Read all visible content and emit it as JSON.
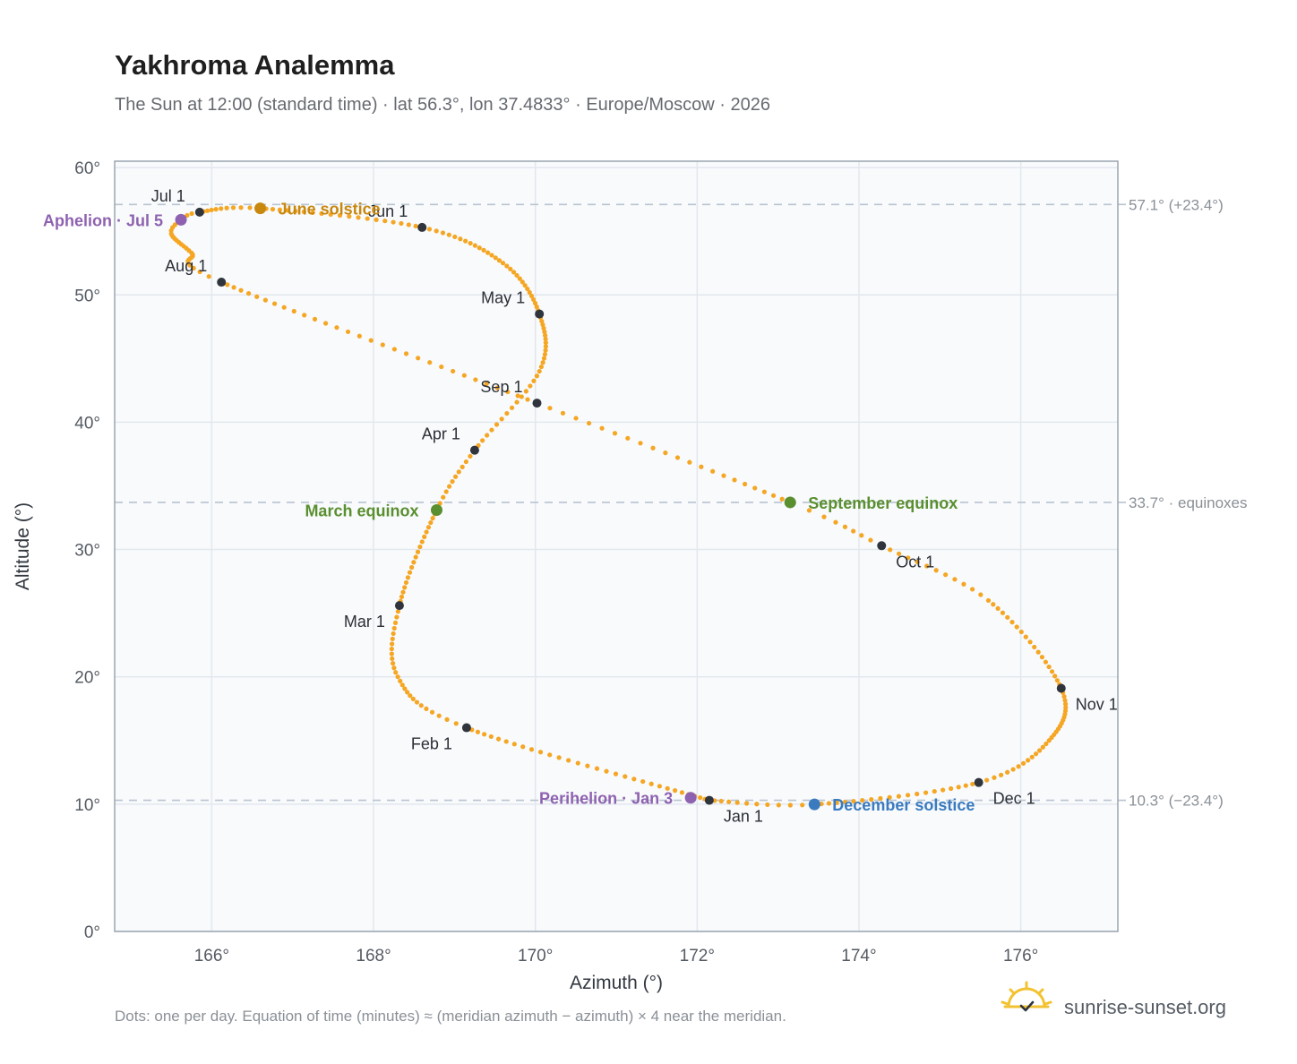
{
  "header": {
    "title": "Yakhroma Analemma",
    "subtitle": "The Sun at 12:00 (standard time) · lat 56.3°, lon 37.4833° · Europe/Moscow · 2026"
  },
  "footer": {
    "note": "Dots: one per day. Equation of time (minutes) ≈ (meridian azimuth − azimuth) × 4 near the meridian.",
    "brand": "sunrise-sunset.org",
    "brand_icon": "sun-check-icon"
  },
  "colors": {
    "curve": "#f5a623",
    "month_dot": "#30353d",
    "solstice_june": "#c8870f",
    "solstice_december": "#3a7bbf",
    "equinox": "#5a8f2f",
    "apsis": "#8e62b0",
    "plot_bg": "#f8fafc",
    "grid": "#e3e8ee",
    "ref_line": "#b8c4d0",
    "frame": "#9aa5b1"
  },
  "chart_data": {
    "type": "scatter",
    "title": "Yakhroma Analemma",
    "xlabel": "Azimuth (°)",
    "ylabel": "Altitude (°)",
    "xlim": [
      164.8,
      177.2
    ],
    "ylim": [
      0,
      60.5
    ],
    "x_ticks": [
      {
        "value": 166,
        "label": "166°"
      },
      {
        "value": 168,
        "label": "168°"
      },
      {
        "value": 170,
        "label": "170°"
      },
      {
        "value": 172,
        "label": "172°"
      },
      {
        "value": 174,
        "label": "174°"
      },
      {
        "value": 176,
        "label": "176°"
      }
    ],
    "y_ticks": [
      {
        "value": 0,
        "label": "0°"
      },
      {
        "value": 10,
        "label": "10°"
      },
      {
        "value": 20,
        "label": "20°"
      },
      {
        "value": 30,
        "label": "30°"
      },
      {
        "value": 40,
        "label": "40°"
      },
      {
        "value": 50,
        "label": "50°"
      },
      {
        "value": 60,
        "label": "60°"
      }
    ],
    "grid": true,
    "reference_lines": [
      {
        "altitude": 57.1,
        "label": "57.1° (+23.4°)"
      },
      {
        "altitude": 33.7,
        "label": "33.7° · equinoxes"
      },
      {
        "altitude": 10.3,
        "label": "10.3° (−23.4°)"
      }
    ],
    "path_knots": [
      {
        "x": 172.15,
        "y": 10.3
      },
      {
        "x": 169.15,
        "y": 16.0
      },
      {
        "x": 168.3,
        "y": 20.0
      },
      {
        "x": 168.32,
        "y": 25.6
      },
      {
        "x": 168.78,
        "y": 33.1
      },
      {
        "x": 169.25,
        "y": 37.8
      },
      {
        "x": 170.05,
        "y": 44.0
      },
      {
        "x": 170.05,
        "y": 48.5
      },
      {
        "x": 169.6,
        "y": 52.5
      },
      {
        "x": 168.6,
        "y": 55.3
      },
      {
        "x": 166.6,
        "y": 56.8
      },
      {
        "x": 165.85,
        "y": 56.5
      },
      {
        "x": 165.62,
        "y": 55.9
      },
      {
        "x": 165.5,
        "y": 54.8
      },
      {
        "x": 165.75,
        "y": 53.3
      },
      {
        "x": 166.12,
        "y": 51.0
      },
      {
        "x": 170.02,
        "y": 41.5
      },
      {
        "x": 173.15,
        "y": 33.7
      },
      {
        "x": 174.28,
        "y": 30.3
      },
      {
        "x": 175.6,
        "y": 26.0
      },
      {
        "x": 176.5,
        "y": 19.1
      },
      {
        "x": 176.35,
        "y": 15.0
      },
      {
        "x": 175.48,
        "y": 11.7
      },
      {
        "x": 173.45,
        "y": 9.98
      },
      {
        "x": 172.15,
        "y": 10.3
      }
    ],
    "path_days": [
      0,
      31,
      45,
      59,
      79,
      90,
      105,
      120,
      135,
      151,
      171,
      181,
      185,
      190,
      200,
      212,
      243,
      265,
      273,
      285,
      304,
      320,
      334,
      354,
      365
    ],
    "months": [
      {
        "label": "Jan 1",
        "x": 172.15,
        "y": 10.3,
        "anchor": "start",
        "dx": 16,
        "dy": 24
      },
      {
        "label": "Feb 1",
        "x": 169.15,
        "y": 16.0,
        "anchor": "end",
        "dx": -16,
        "dy": 24
      },
      {
        "label": "Mar 1",
        "x": 168.32,
        "y": 25.6,
        "anchor": "end",
        "dx": -16,
        "dy": 24
      },
      {
        "label": "Apr 1",
        "x": 169.25,
        "y": 37.8,
        "anchor": "end",
        "dx": -16,
        "dy": -12
      },
      {
        "label": "May 1",
        "x": 170.05,
        "y": 48.5,
        "anchor": "end",
        "dx": -16,
        "dy": -12
      },
      {
        "label": "Jun 1",
        "x": 168.6,
        "y": 55.3,
        "anchor": "end",
        "dx": -16,
        "dy": -12
      },
      {
        "label": "Jul 1",
        "x": 165.85,
        "y": 56.5,
        "anchor": "end",
        "dx": -16,
        "dy": -12
      },
      {
        "label": "Aug 1",
        "x": 166.12,
        "y": 51.0,
        "anchor": "end",
        "dx": -16,
        "dy": -12
      },
      {
        "label": "Sep 1",
        "x": 170.02,
        "y": 41.5,
        "anchor": "end",
        "dx": -16,
        "dy": -12
      },
      {
        "label": "Oct 1",
        "x": 174.28,
        "y": 30.3,
        "anchor": "start",
        "dx": 16,
        "dy": 24
      },
      {
        "label": "Nov 1",
        "x": 176.5,
        "y": 19.1,
        "anchor": "start",
        "dx": 16,
        "dy": 24
      },
      {
        "label": "Dec 1",
        "x": 175.48,
        "y": 11.7,
        "anchor": "start",
        "dx": 16,
        "dy": 24
      }
    ],
    "events": [
      {
        "label": "June solstice",
        "x": 166.6,
        "y": 56.8,
        "color": "#c8870f",
        "anchor": "start",
        "dx": 20,
        "dy": 7
      },
      {
        "label": "December solstice",
        "x": 173.45,
        "y": 9.98,
        "color": "#3a7bbf",
        "anchor": "start",
        "dx": 20,
        "dy": 7
      },
      {
        "label": "March equinox",
        "x": 168.78,
        "y": 33.1,
        "color": "#5a8f2f",
        "anchor": "end",
        "dx": -20,
        "dy": 7
      },
      {
        "label": "September equinox",
        "x": 173.15,
        "y": 33.7,
        "color": "#5a8f2f",
        "anchor": "start",
        "dx": 20,
        "dy": 7
      },
      {
        "label": "Aphelion · Jul 5",
        "x": 165.62,
        "y": 55.9,
        "color": "#8e62b0",
        "anchor": "end",
        "dx": -20,
        "dy": 7
      },
      {
        "label": "Perihelion · Jan 3",
        "x": 171.92,
        "y": 10.5,
        "color": "#8e62b0",
        "anchor": "end",
        "dx": -20,
        "dy": 7
      }
    ]
  }
}
